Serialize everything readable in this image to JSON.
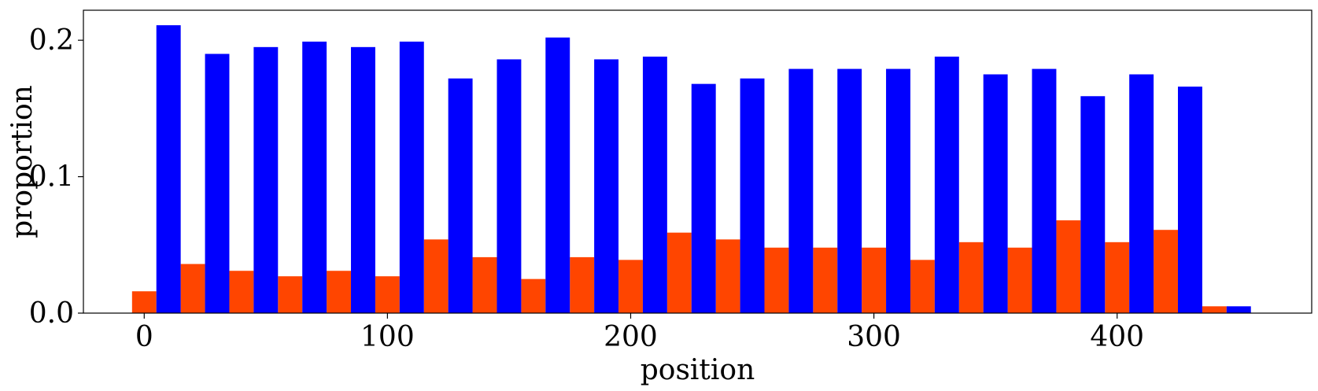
{
  "chart_data": {
    "type": "bar",
    "title": "",
    "xlabel": "position",
    "ylabel": "proportion",
    "xlim": [
      -25,
      480
    ],
    "ylim": [
      0,
      0.222
    ],
    "xticks": [
      0,
      100,
      200,
      300,
      400
    ],
    "xtick_labels": [
      "0",
      "100",
      "200",
      "300",
      "400"
    ],
    "yticks": [
      0.0,
      0.1,
      0.2
    ],
    "ytick_labels": [
      "0.0",
      "0.1",
      "0.2"
    ],
    "grid": false,
    "bin_width": 20,
    "series": [
      {
        "color": "#FF4500",
        "x": [
          0,
          20,
          40,
          60,
          80,
          100,
          120,
          140,
          160,
          180,
          200,
          220,
          240,
          260,
          280,
          300,
          320,
          340,
          360,
          380,
          400,
          420,
          440
        ],
        "values": [
          0.016,
          0.036,
          0.031,
          0.027,
          0.031,
          0.027,
          0.054,
          0.041,
          0.025,
          0.041,
          0.039,
          0.059,
          0.054,
          0.048,
          0.048,
          0.048,
          0.039,
          0.052,
          0.048,
          0.068,
          0.052,
          0.061,
          0.005
        ]
      },
      {
        "color": "#0000FF",
        "x": [
          10,
          30,
          50,
          70,
          90,
          110,
          130,
          150,
          170,
          190,
          210,
          230,
          250,
          270,
          290,
          310,
          330,
          350,
          370,
          390,
          410,
          430,
          450
        ],
        "values": [
          0.211,
          0.19,
          0.195,
          0.199,
          0.195,
          0.199,
          0.172,
          0.186,
          0.202,
          0.186,
          0.188,
          0.168,
          0.172,
          0.179,
          0.179,
          0.179,
          0.188,
          0.175,
          0.179,
          0.159,
          0.175,
          0.166,
          0.005
        ]
      }
    ]
  }
}
